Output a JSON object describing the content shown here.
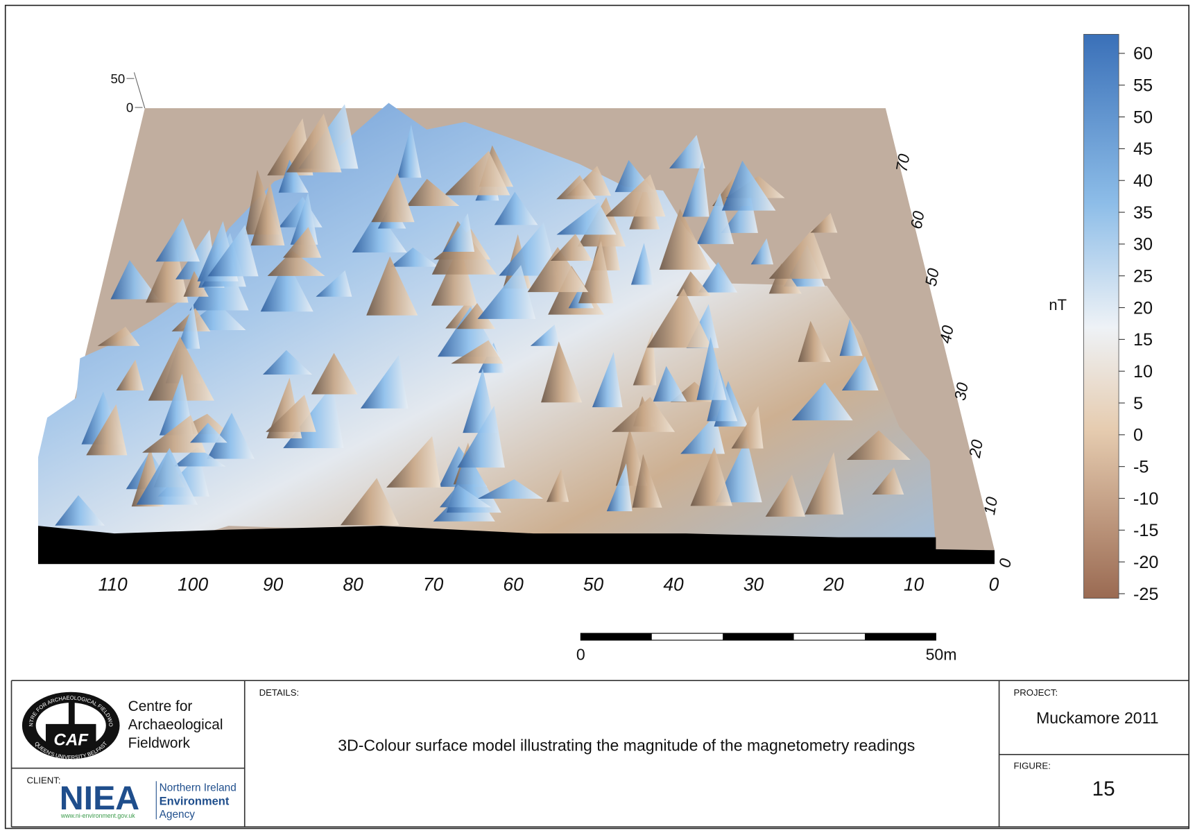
{
  "figure": {
    "z_axis_ticks": [
      50,
      0
    ],
    "x_axis_ticks": [
      110,
      100,
      90,
      80,
      70,
      60,
      50,
      40,
      30,
      20,
      10,
      0
    ],
    "y_axis_ticks": [
      0,
      10,
      20,
      30,
      40,
      50,
      60,
      70
    ],
    "colorbar": {
      "unit": "nT",
      "ticks": [
        60,
        55,
        50,
        45,
        40,
        35,
        30,
        25,
        20,
        15,
        10,
        5,
        0,
        -5,
        -10,
        -15,
        -20,
        -25
      ]
    },
    "scale_bar": {
      "start": "0",
      "end": "50m"
    }
  },
  "title_block": {
    "organisation": {
      "logo_ring_top": "CENTRE FOR ARCHAEOLOGICAL FIELDWORK",
      "logo_ring_bottom": "QUEEN'S UNIVERSITY BELFAST",
      "logo_text": "CAF",
      "name_lines": [
        "Centre for",
        "Archaeological",
        "Fieldwork"
      ]
    },
    "client": {
      "label": "CLIENT:",
      "logo_text": "NIEA",
      "name_lines": [
        "Northern Ireland",
        "Environment",
        "Agency"
      ],
      "url": "www.ni-environment.gov.uk"
    },
    "details": {
      "label": "DETAILS:",
      "text": "3D-Colour surface model illustrating the magnitude of the magnetometry readings"
    },
    "project": {
      "label": "PROJECT:",
      "text": "Muckamore 2011"
    },
    "figure": {
      "label": "FIGURE:",
      "number": "15"
    }
  }
}
